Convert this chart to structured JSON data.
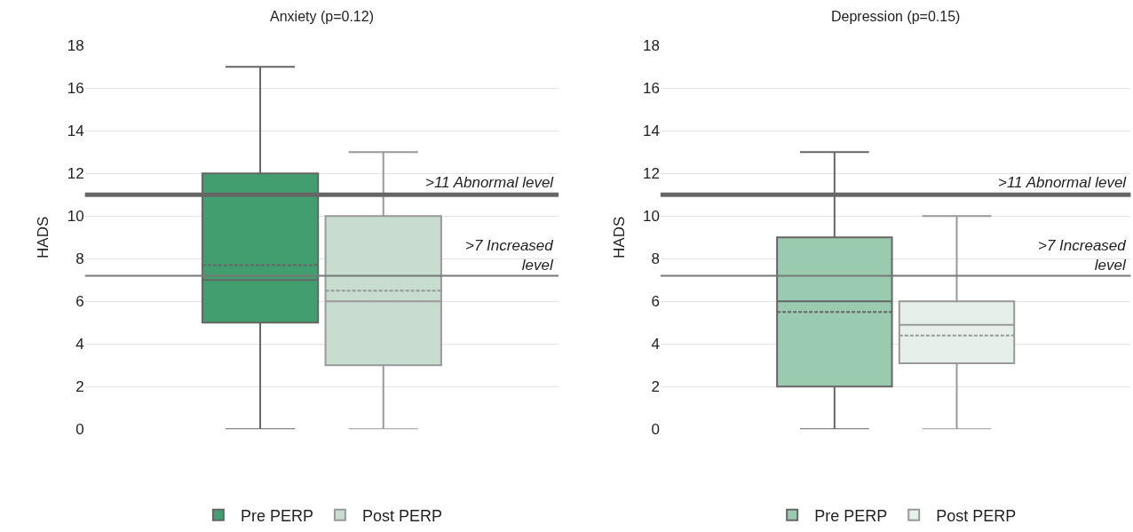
{
  "chart_data": [
    {
      "type": "box",
      "title": "Anxiety (p=0.12)",
      "ylabel": "HADS",
      "categories": [
        null
      ],
      "ylim": [
        0,
        18
      ],
      "yticks": [
        0,
        2,
        4,
        6,
        8,
        10,
        12,
        14,
        16,
        18
      ],
      "grid": "y",
      "legend": "bottom",
      "series": [
        {
          "name": "Pre PERP",
          "color": "#429e6f",
          "boxes": [
            {
              "low": 0,
              "q1": 5,
              "median": 7,
              "q3": 12,
              "high": 17,
              "mean": 7.7
            }
          ]
        },
        {
          "name": "Post PERP",
          "color": "#c8ddd0",
          "boxes": [
            {
              "low": 0,
              "q1": 3,
              "median": 6,
              "q3": 10,
              "high": 13,
              "mean": 6.5
            }
          ]
        }
      ],
      "ref_lines": [
        {
          "axis": "y",
          "value": 11,
          "label": ">11 Abnormal level",
          "color": "#666666"
        },
        {
          "axis": "y",
          "value": 7.2,
          "label": ">7 Increased level",
          "color": "#777777"
        }
      ]
    },
    {
      "type": "box",
      "title": "Depression (p=0.15)",
      "ylabel": "HADS",
      "categories": [
        null
      ],
      "ylim": [
        0,
        18
      ],
      "yticks": [
        0,
        2,
        4,
        6,
        8,
        10,
        12,
        14,
        16,
        18
      ],
      "grid": "y",
      "legend": "bottom",
      "series": [
        {
          "name": "Pre PERP",
          "color": "#9acab0",
          "boxes": [
            {
              "low": 0,
              "q1": 2,
              "median": 6,
              "q3": 9,
              "high": 13,
              "mean": 5.5
            }
          ]
        },
        {
          "name": "Post PERP",
          "color": "#e6efe9",
          "boxes": [
            {
              "low": 0,
              "q1": 3.1,
              "median": 4.9,
              "q3": 6,
              "high": 10,
              "mean": 4.4
            }
          ]
        }
      ],
      "ref_lines": [
        {
          "axis": "y",
          "value": 11,
          "label": ">11 Abnormal level",
          "color": "#666666"
        },
        {
          "axis": "y",
          "value": 7.2,
          "label": ">7 Increased level",
          "color": "#777777"
        }
      ]
    }
  ]
}
